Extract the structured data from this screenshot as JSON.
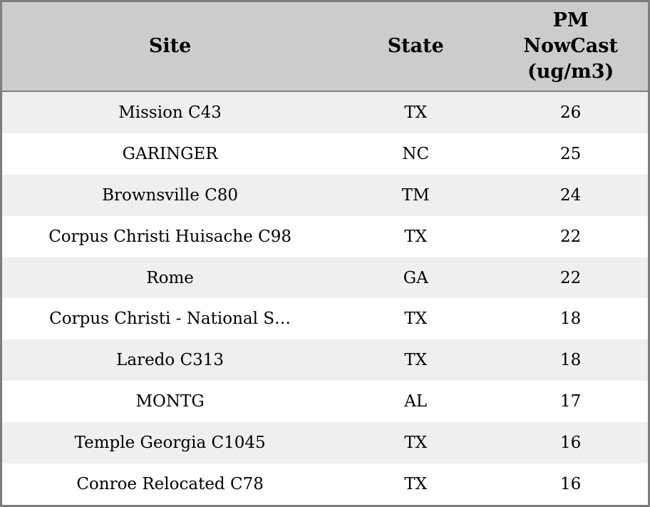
{
  "accent_colors": {
    "header_bg": "#cccccc",
    "row_alt_bg": "#efefef",
    "row_bg": "#ffffff",
    "border": "#7d7d7d",
    "text": "#000000"
  },
  "chart_data": {
    "type": "table",
    "title": "",
    "columns": [
      "Site",
      "State",
      "PM NowCast (ug/m3)"
    ],
    "rows": [
      [
        "Mission C43",
        "TX",
        "26"
      ],
      [
        "GARINGER",
        "NC",
        "25"
      ],
      [
        "Brownsville C80",
        "TM",
        "24"
      ],
      [
        "Corpus Christi Huisache C98",
        "TX",
        "22"
      ],
      [
        "Rome",
        "GA",
        "22"
      ],
      [
        "Corpus Christi - National S…",
        "TX",
        "18"
      ],
      [
        "Laredo C313",
        "TX",
        "18"
      ],
      [
        "MONTG",
        "AL",
        "17"
      ],
      [
        "Temple Georgia C1045",
        "TX",
        "16"
      ],
      [
        "Conroe Relocated C78",
        "TX",
        "16"
      ]
    ]
  },
  "table": {
    "headers": {
      "site": "Site",
      "state": "State",
      "pm_nowcast": "PM\nNowCast\n(ug/m3)"
    }
  }
}
